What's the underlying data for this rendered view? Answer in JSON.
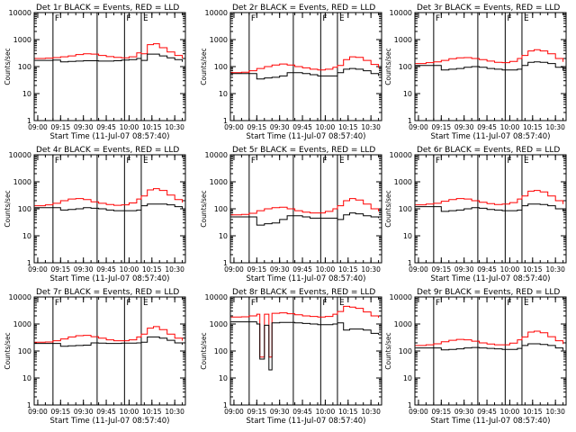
{
  "series_colors": {
    "events": "#000000",
    "lld": "#ff0000"
  },
  "shared": {
    "xlabel": "Start Time (11-Jul-07 08:57:40)",
    "ylabel": "Counts/sec",
    "xticks": [
      "09:00",
      "09:15",
      "09:30",
      "09:45",
      "10:00",
      "10:15",
      "10:30"
    ],
    "yticks": [
      "1",
      "10",
      "100",
      "1000",
      "10000"
    ],
    "ylim": [
      1,
      10000
    ],
    "yscale": "log",
    "xlim": [
      "08:57:40",
      "10:37:00"
    ],
    "marker_letters": [
      "F",
      "F",
      "E"
    ],
    "vertical_lines": [
      "09:10",
      "09:39",
      "09:57",
      "10:08"
    ]
  },
  "chart_data": [
    {
      "type": "line",
      "title": "Det 1r BLACK = Events, RED = LLD",
      "ylim": [
        1,
        10000
      ],
      "x": [
        "08:58",
        "09:05",
        "09:10",
        "09:15",
        "09:20",
        "09:25",
        "09:30",
        "09:35",
        "09:40",
        "09:45",
        "09:50",
        "09:55",
        "10:00",
        "10:05",
        "10:08",
        "10:12",
        "10:16",
        "10:20",
        "10:25",
        "10:30",
        "10:35"
      ],
      "series": [
        {
          "name": "Events",
          "values": [
            170,
            170,
            175,
            150,
            155,
            160,
            165,
            165,
            160,
            160,
            165,
            175,
            180,
            200,
            170,
            290,
            290,
            250,
            210,
            180,
            150
          ]
        },
        {
          "name": "LLD",
          "values": [
            200,
            205,
            215,
            230,
            250,
            280,
            300,
            290,
            260,
            235,
            220,
            210,
            230,
            320,
            300,
            650,
            700,
            500,
            350,
            260,
            200
          ]
        }
      ]
    },
    {
      "type": "line",
      "title": "Det 2r BLACK = Events, RED = LLD",
      "ylim": [
        1,
        10000
      ],
      "x": [
        "08:58",
        "09:05",
        "09:10",
        "09:15",
        "09:20",
        "09:25",
        "09:30",
        "09:35",
        "09:40",
        "09:45",
        "09:50",
        "09:55",
        "10:00",
        "10:05",
        "10:08",
        "10:12",
        "10:16",
        "10:20",
        "10:25",
        "10:30",
        "10:35"
      ],
      "series": [
        {
          "name": "Events",
          "values": [
            55,
            55,
            55,
            35,
            38,
            40,
            45,
            60,
            60,
            55,
            50,
            45,
            45,
            45,
            60,
            80,
            85,
            80,
            70,
            55,
            45
          ]
        },
        {
          "name": "LLD",
          "values": [
            60,
            62,
            70,
            85,
            100,
            115,
            125,
            115,
            100,
            90,
            80,
            75,
            80,
            95,
            110,
            180,
            230,
            220,
            170,
            120,
            90
          ]
        }
      ]
    },
    {
      "type": "line",
      "title": "Det 3r BLACK = Events, RED = LLD",
      "ylim": [
        1,
        10000
      ],
      "x": [
        "08:58",
        "09:05",
        "09:10",
        "09:15",
        "09:20",
        "09:25",
        "09:30",
        "09:35",
        "09:40",
        "09:45",
        "09:50",
        "09:55",
        "10:00",
        "10:05",
        "10:08",
        "10:12",
        "10:16",
        "10:20",
        "10:25",
        "10:30",
        "10:35"
      ],
      "series": [
        {
          "name": "Events",
          "values": [
            110,
            110,
            110,
            75,
            80,
            85,
            95,
            100,
            95,
            85,
            80,
            75,
            75,
            80,
            110,
            145,
            150,
            145,
            130,
            95,
            70
          ]
        },
        {
          "name": "LLD",
          "values": [
            130,
            140,
            150,
            170,
            195,
            210,
            215,
            200,
            180,
            160,
            145,
            140,
            155,
            200,
            260,
            380,
            420,
            380,
            300,
            200,
            150
          ]
        }
      ]
    },
    {
      "type": "line",
      "title": "Det 4r BLACK = Events, RED = LLD",
      "ylim": [
        1,
        10000
      ],
      "x": [
        "08:58",
        "09:05",
        "09:10",
        "09:15",
        "09:20",
        "09:25",
        "09:30",
        "09:35",
        "09:40",
        "09:45",
        "09:50",
        "09:55",
        "10:00",
        "10:05",
        "10:08",
        "10:12",
        "10:16",
        "10:20",
        "10:25",
        "10:30",
        "10:35"
      ],
      "series": [
        {
          "name": "Events",
          "values": [
            110,
            110,
            110,
            90,
            95,
            100,
            110,
            105,
            100,
            90,
            85,
            85,
            85,
            90,
            130,
            150,
            150,
            150,
            140,
            120,
            100
          ]
        },
        {
          "name": "LLD",
          "values": [
            130,
            140,
            160,
            200,
            230,
            240,
            220,
            180,
            160,
            145,
            135,
            140,
            165,
            230,
            300,
            500,
            560,
            480,
            320,
            220,
            170
          ]
        }
      ]
    },
    {
      "type": "line",
      "title": "Det 5r BLACK = Events, RED = LLD",
      "ylim": [
        1,
        10000
      ],
      "x": [
        "08:58",
        "09:05",
        "09:10",
        "09:15",
        "09:20",
        "09:25",
        "09:30",
        "09:35",
        "09:40",
        "09:45",
        "09:50",
        "09:55",
        "10:00",
        "10:05",
        "10:08",
        "10:12",
        "10:16",
        "10:20",
        "10:25",
        "10:30",
        "10:35"
      ],
      "series": [
        {
          "name": "Events",
          "values": [
            50,
            50,
            50,
            25,
            28,
            30,
            40,
            55,
            55,
            50,
            45,
            45,
            45,
            45,
            40,
            60,
            70,
            65,
            55,
            50,
            45
          ]
        },
        {
          "name": "LLD",
          "values": [
            60,
            62,
            68,
            85,
            100,
            110,
            115,
            100,
            85,
            75,
            70,
            70,
            80,
            100,
            130,
            200,
            240,
            210,
            150,
            100,
            80
          ]
        }
      ]
    },
    {
      "type": "line",
      "title": "Det 6r BLACK = Events, RED = LLD",
      "ylim": [
        1,
        10000
      ],
      "x": [
        "08:58",
        "09:05",
        "09:10",
        "09:15",
        "09:20",
        "09:25",
        "09:30",
        "09:35",
        "09:40",
        "09:45",
        "09:50",
        "09:55",
        "10:00",
        "10:05",
        "10:08",
        "10:12",
        "10:16",
        "10:20",
        "10:25",
        "10:30",
        "10:35"
      ],
      "series": [
        {
          "name": "Events",
          "values": [
            120,
            120,
            120,
            80,
            85,
            90,
            100,
            110,
            105,
            95,
            90,
            85,
            85,
            90,
            130,
            150,
            150,
            145,
            130,
            100,
            80
          ]
        },
        {
          "name": "LLD",
          "values": [
            140,
            150,
            160,
            190,
            220,
            240,
            230,
            200,
            175,
            155,
            145,
            150,
            170,
            230,
            300,
            450,
            480,
            420,
            300,
            200,
            150
          ]
        }
      ]
    },
    {
      "type": "line",
      "title": "Det 7r BLACK = Events, RED = LLD",
      "ylim": [
        1,
        10000
      ],
      "x": [
        "08:58",
        "09:05",
        "09:10",
        "09:15",
        "09:20",
        "09:25",
        "09:30",
        "09:35",
        "09:40",
        "09:45",
        "09:50",
        "09:55",
        "10:00",
        "10:05",
        "10:08",
        "10:12",
        "10:16",
        "10:20",
        "10:25",
        "10:30",
        "10:35"
      ],
      "series": [
        {
          "name": "Events",
          "values": [
            190,
            190,
            190,
            150,
            155,
            160,
            165,
            200,
            195,
            190,
            190,
            195,
            195,
            200,
            210,
            330,
            330,
            300,
            250,
            200,
            170
          ]
        },
        {
          "name": "LLD",
          "values": [
            210,
            215,
            240,
            280,
            330,
            370,
            380,
            340,
            300,
            260,
            240,
            240,
            260,
            330,
            420,
            700,
            800,
            620,
            420,
            300,
            240
          ]
        }
      ]
    },
    {
      "type": "line",
      "title": "Det 8r BLACK = Events, RED = LLD",
      "ylim": [
        1,
        10000
      ],
      "x": [
        "08:58",
        "09:05",
        "09:10",
        "09:15",
        "09:17",
        "09:20",
        "09:23",
        "09:25",
        "09:30",
        "09:35",
        "09:40",
        "09:45",
        "09:50",
        "09:55",
        "10:00",
        "10:05",
        "10:08",
        "10:12",
        "10:16",
        "10:20",
        "10:25",
        "10:30",
        "10:35"
      ],
      "series": [
        {
          "name": "Events",
          "values": [
            1200,
            1200,
            1200,
            1000,
            50,
            900,
            20,
            1100,
            1150,
            1150,
            1100,
            1050,
            1000,
            950,
            950,
            1000,
            1100,
            600,
            650,
            650,
            600,
            450,
            400
          ]
        },
        {
          "name": "LLD",
          "values": [
            1800,
            1850,
            2000,
            2300,
            60,
            2300,
            60,
            2500,
            2600,
            2400,
            2200,
            2000,
            1900,
            1800,
            1900,
            2300,
            2900,
            4500,
            4200,
            3800,
            2800,
            2000,
            1700
          ]
        }
      ]
    },
    {
      "type": "line",
      "title": "Det 9r BLACK = Events, RED = LLD",
      "ylim": [
        1,
        10000
      ],
      "x": [
        "08:58",
        "09:05",
        "09:10",
        "09:15",
        "09:20",
        "09:25",
        "09:30",
        "09:35",
        "09:40",
        "09:45",
        "09:50",
        "09:55",
        "10:00",
        "10:05",
        "10:08",
        "10:12",
        "10:16",
        "10:20",
        "10:25",
        "10:30",
        "10:35"
      ],
      "series": [
        {
          "name": "Events",
          "values": [
            130,
            130,
            130,
            110,
            115,
            120,
            130,
            135,
            130,
            125,
            120,
            115,
            115,
            125,
            160,
            185,
            185,
            175,
            160,
            130,
            105
          ]
        },
        {
          "name": "LLD",
          "values": [
            160,
            170,
            185,
            220,
            250,
            270,
            260,
            230,
            200,
            180,
            170,
            170,
            195,
            260,
            330,
            500,
            540,
            470,
            340,
            240,
            180
          ]
        }
      ]
    }
  ]
}
